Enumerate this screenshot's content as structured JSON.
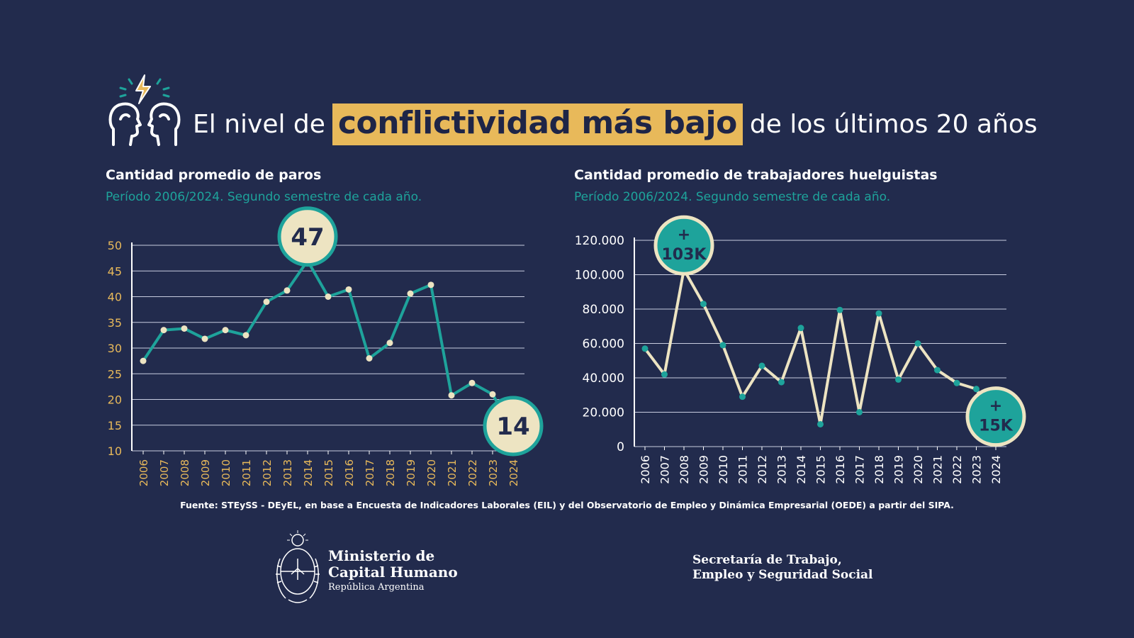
{
  "header": {
    "title_pre": "El nivel de",
    "title_highlight": "conflictividad más bajo",
    "title_post": "de los últimos 20 años",
    "icon": "people-conflict-icon"
  },
  "colors": {
    "background": "#222b4d",
    "highlight": "#e8b95a",
    "teal": "#1ea39b",
    "cream": "#ede4c2",
    "axis_label": "#e8b95a"
  },
  "chart_data": [
    {
      "type": "line",
      "title": "Cantidad promedio de paros",
      "subtitle": "Período 2006/2024. Segundo semestre de cada año.",
      "categories": [
        "2006",
        "2007",
        "2008",
        "2009",
        "2010",
        "2011",
        "2012",
        "2013",
        "2014",
        "2015",
        "2016",
        "2017",
        "2018",
        "2019",
        "2020",
        "2021",
        "2022",
        "2023",
        "2024"
      ],
      "values": [
        27.5,
        33.5,
        33.8,
        31.8,
        33.5,
        32.5,
        39,
        41.2,
        47,
        40,
        41.4,
        28,
        31,
        40.6,
        42.3,
        20.8,
        23.2,
        21,
        14
      ],
      "yticks": [
        "50",
        "45",
        "40",
        "35",
        "30",
        "25",
        "20",
        "15",
        "10"
      ],
      "ylim": [
        10,
        50
      ],
      "callouts": [
        {
          "year": "2014",
          "label": "47"
        },
        {
          "year": "2024",
          "label": "14"
        }
      ]
    },
    {
      "type": "line",
      "title": "Cantidad promedio de trabajadores huelguistas",
      "subtitle": "Período 2006/2024. Segundo semestre de cada año.",
      "categories": [
        "2006",
        "2007",
        "2008",
        "2009",
        "2010",
        "2011",
        "2012",
        "2013",
        "2014",
        "2015",
        "2016",
        "2017",
        "2018",
        "2019",
        "2020",
        "2021",
        "2022",
        "2023",
        "2024"
      ],
      "values": [
        57000,
        42000,
        103000,
        83000,
        59000,
        29000,
        47000,
        37500,
        69000,
        13000,
        79500,
        20000,
        77500,
        39000,
        60000,
        44500,
        37000,
        33500,
        15000
      ],
      "yticks": [
        "120.000",
        "100.000",
        "80.000",
        "60.000",
        "40.000",
        "20.000",
        "0"
      ],
      "ylim": [
        0,
        120000
      ],
      "callouts": [
        {
          "year": "2008",
          "plus": "+",
          "label": "103K"
        },
        {
          "year": "2024",
          "plus": "+",
          "label": "15K"
        }
      ]
    }
  ],
  "footer": {
    "source": "Fuente: STEySS - DEyEL, en base a Encuesta de Indicadores Laborales (EIL) y del Observatorio de Empleo y Dinámica Empresarial (OEDE) a partir del SIPA.",
    "ministry_line1": "Ministerio de",
    "ministry_line2": "Capital Humano",
    "ministry_line3": "República Argentina",
    "secretaria_line1": "Secretaría de Trabajo,",
    "secretaria_line2": "Empleo y Seguridad Social"
  }
}
